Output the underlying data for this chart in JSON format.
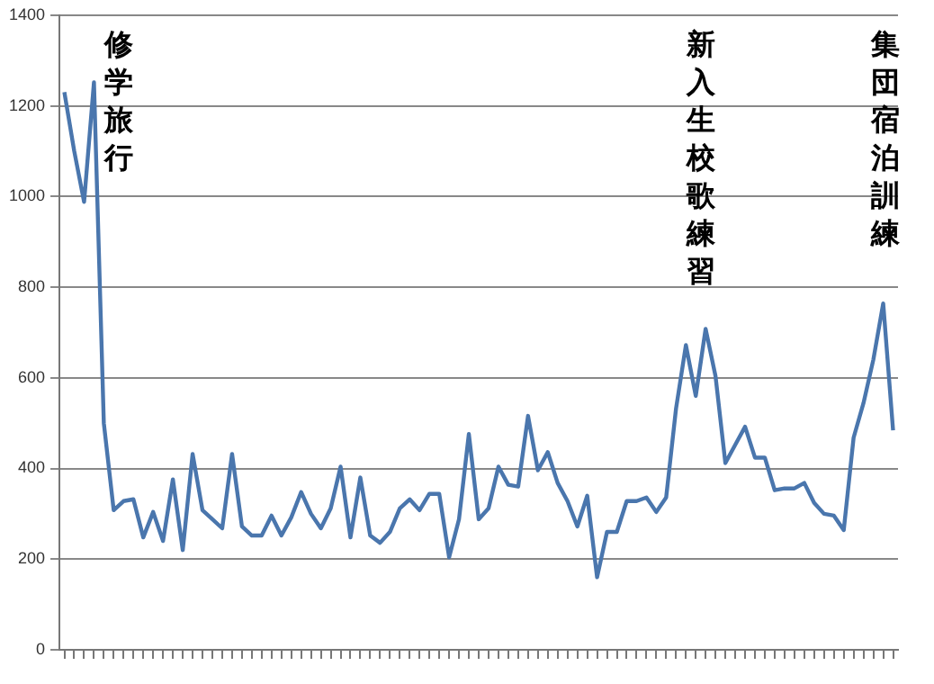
{
  "chart_data": {
    "type": "line",
    "categories": [
      null,
      null,
      null,
      null,
      null,
      null,
      null,
      null,
      null,
      null,
      null,
      null,
      null,
      null,
      null,
      null,
      null,
      null,
      null,
      null,
      null,
      null,
      null,
      null,
      null,
      null,
      null,
      null,
      null,
      null,
      null,
      null,
      null,
      null,
      null,
      null,
      null,
      null,
      null,
      null,
      null,
      null,
      null,
      null,
      null,
      null,
      null,
      null,
      null,
      null,
      null,
      null,
      null,
      null,
      null,
      null,
      null,
      null,
      null,
      null,
      null,
      null,
      null,
      null,
      null,
      null,
      null,
      null,
      null,
      null,
      null,
      null,
      null,
      null,
      null,
      null,
      null,
      null,
      null,
      null,
      null,
      null,
      null,
      null,
      null
    ],
    "series": [
      {
        "color": "#4a76ad",
        "values": [
          1230,
          1100,
          988,
          1252,
          500,
          308,
          328,
          332,
          248,
          304,
          240,
          376,
          220,
          432,
          308,
          288,
          268,
          432,
          272,
          252,
          252,
          296,
          252,
          292,
          348,
          300,
          268,
          312,
          404,
          248,
          380,
          252,
          236,
          260,
          312,
          332,
          308,
          344,
          344,
          204,
          288,
          476,
          288,
          312,
          404,
          364,
          360,
          516,
          396,
          436,
          368,
          328,
          272,
          340,
          160,
          260,
          260,
          328,
          328,
          336,
          304,
          336,
          532,
          672,
          560,
          708,
          604,
          412,
          452,
          492,
          424,
          424,
          352,
          356,
          356,
          368,
          324,
          300,
          296,
          264,
          468,
          544,
          640,
          764,
          484
        ]
      }
    ],
    "ylim": [
      0,
      1400
    ],
    "yticks": [
      0,
      200,
      400,
      600,
      800,
      1000,
      1200,
      1400
    ],
    "grid": "y",
    "tick_labels": "y",
    "marker": "none",
    "line_style": "solid",
    "legend": false,
    "annotations": [
      "修学旅行",
      "新入生校歌練習",
      "集団宿泊訓練"
    ]
  }
}
